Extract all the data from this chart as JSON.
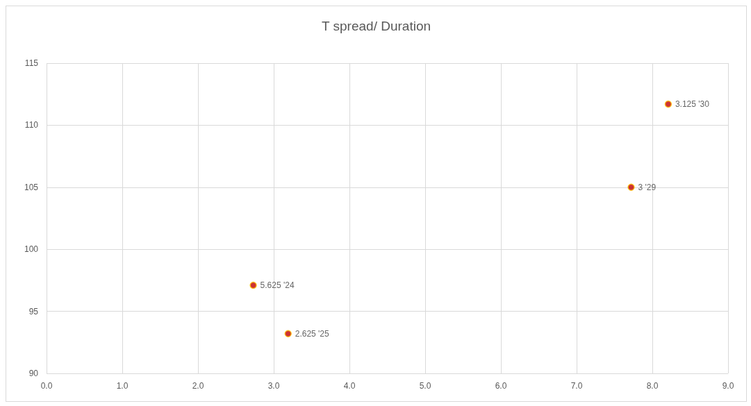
{
  "chart_data": {
    "type": "scatter",
    "title": "T spread/ Duration",
    "x": [
      2.73,
      3.19,
      7.72,
      8.21
    ],
    "values": [
      97.1,
      93.2,
      105.0,
      111.7
    ],
    "color": "#c00000",
    "marker": "circle",
    "annotations": [
      {
        "text": "5.625 '24",
        "x": 2.73,
        "y": 97.1
      },
      {
        "text": "2.625 '25",
        "x": 3.19,
        "y": 93.2
      },
      {
        "text": "3 '29",
        "x": 7.72,
        "y": 105.0
      },
      {
        "text": "3.125 '30",
        "x": 8.21,
        "y": 111.7
      }
    ],
    "xlim": [
      0,
      9
    ],
    "xticks": [
      {
        "value": 0,
        "label": "0.0"
      },
      {
        "value": 1,
        "label": "1.0"
      },
      {
        "value": 2,
        "label": "2.0"
      },
      {
        "value": 3,
        "label": "3.0"
      },
      {
        "value": 4,
        "label": "4.0"
      },
      {
        "value": 5,
        "label": "5.0"
      },
      {
        "value": 6,
        "label": "6.0"
      },
      {
        "value": 7,
        "label": "7.0"
      },
      {
        "value": 8,
        "label": "8.0"
      },
      {
        "value": 9,
        "label": "9.0"
      }
    ],
    "ylim": [
      90,
      115
    ],
    "yticks": [
      90,
      95,
      100,
      105,
      110,
      115
    ],
    "grid": true
  }
}
